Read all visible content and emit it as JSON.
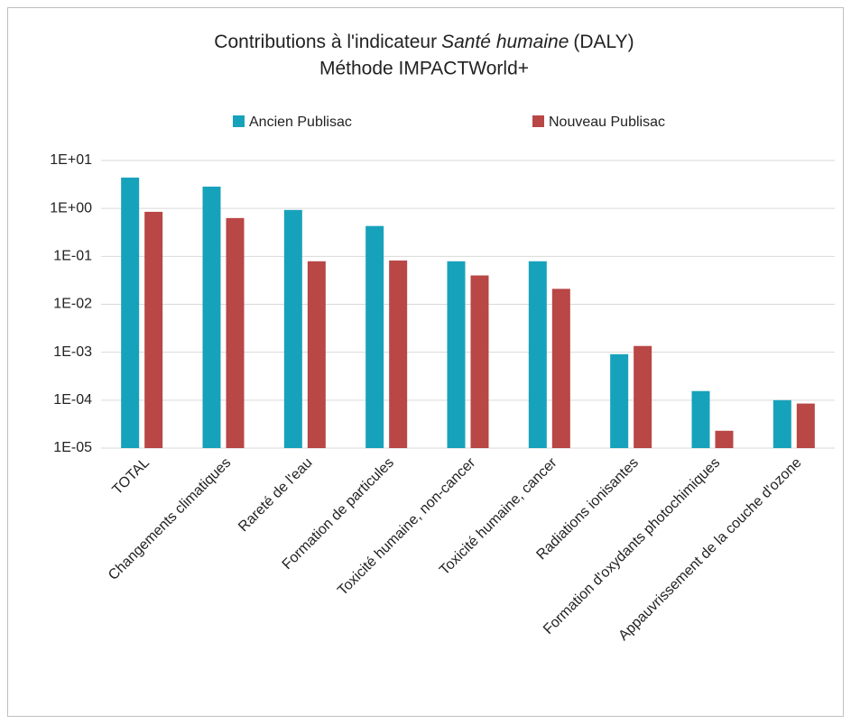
{
  "chart_data": {
    "type": "bar",
    "title": [
      "Contributions à l'indicateur",
      "Santé humaine",
      "(DALY)"
    ],
    "subtitle": "Méthode IMPACTWorld+",
    "categories": [
      "TOTAL",
      "Changements climatiques",
      "Rareté de l'eau",
      "Formation de particules",
      "Toxicité humaine, non-cancer",
      "Toxicité humaine, cancer",
      "Radiations ionisantes",
      "Formation d'oxydants photochimiques",
      "Appauvrissement de la couche d'ozone"
    ],
    "series": [
      {
        "name": "Ancien Publisac",
        "color": "#17a2bb",
        "values": [
          4.4,
          2.85,
          0.93,
          0.43,
          0.079,
          0.079,
          0.00091,
          0.000155,
          0.0001
        ]
      },
      {
        "name": "Nouveau Publisac",
        "color": "#b84745",
        "values": [
          0.85,
          0.63,
          0.079,
          0.082,
          0.04,
          0.021,
          0.00135,
          2.3e-05,
          8.5e-05
        ]
      }
    ],
    "log_scale": true,
    "ylim": [
      1e-05,
      10
    ],
    "yticks": [
      {
        "value": 10,
        "label": "1E+01"
      },
      {
        "value": 1,
        "label": "1E+00"
      },
      {
        "value": 0.1,
        "label": "1E-01"
      },
      {
        "value": 0.01,
        "label": "1E-02"
      },
      {
        "value": 0.001,
        "label": "1E-03"
      },
      {
        "value": 0.0001,
        "label": "1E-04"
      },
      {
        "value": 1e-05,
        "label": "1E-05"
      }
    ],
    "grid": true,
    "legend": "top"
  }
}
